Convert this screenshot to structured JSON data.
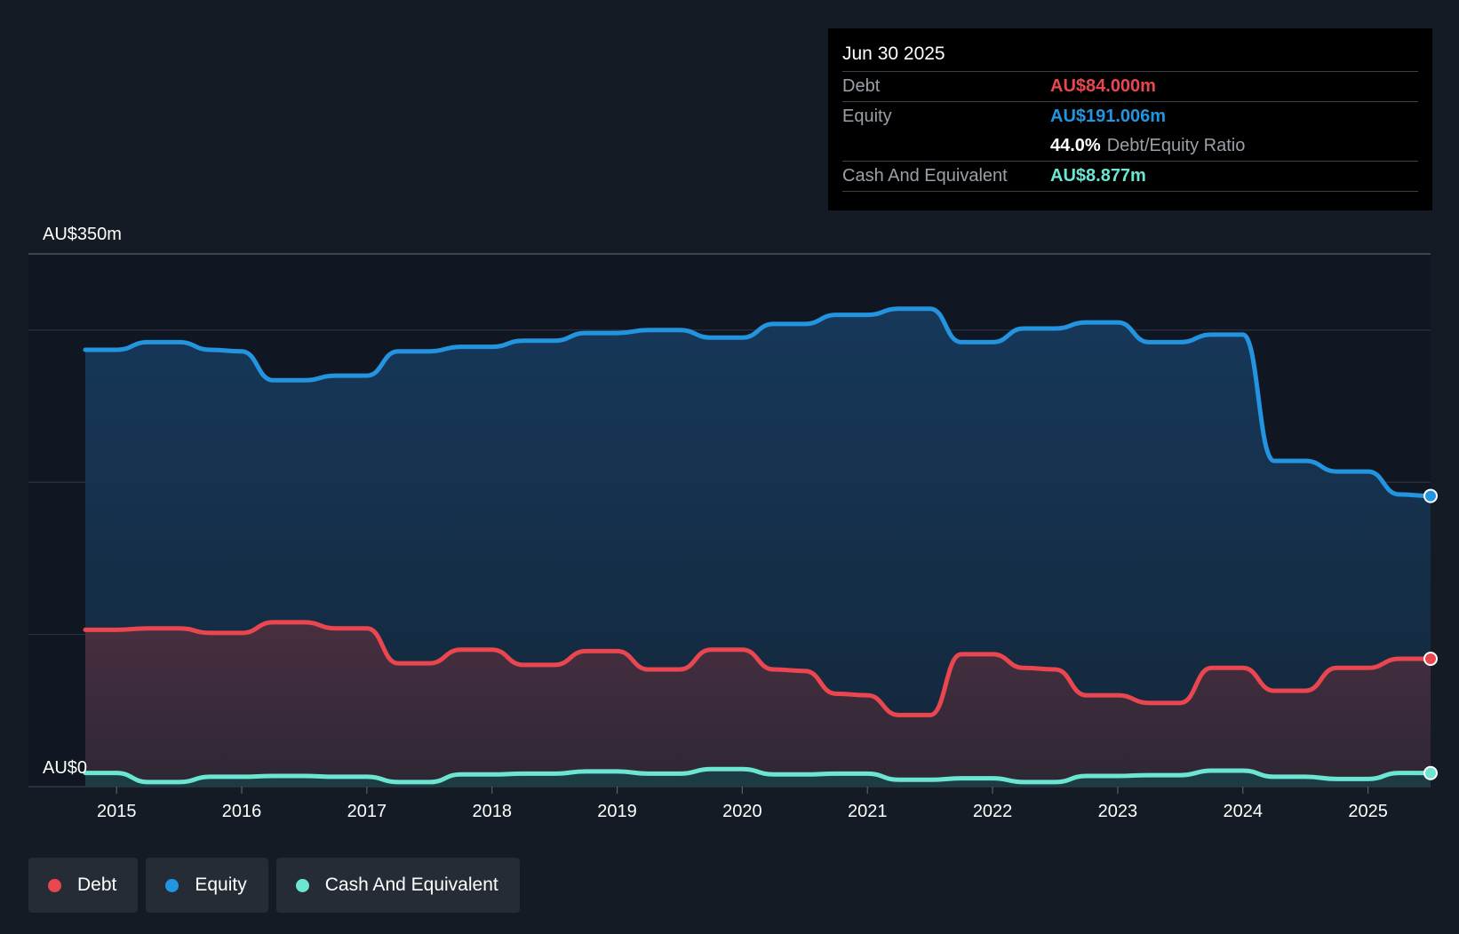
{
  "tooltip": {
    "date": "Jun 30 2025",
    "debt_label": "Debt",
    "debt_value": "AU$84.000m",
    "equity_label": "Equity",
    "equity_value": "AU$191.006m",
    "ratio_value": "44.0%",
    "ratio_label": "Debt/Equity Ratio",
    "cash_label": "Cash And Equivalent",
    "cash_value": "AU$8.877m"
  },
  "legend": {
    "debt": "Debt",
    "equity": "Equity",
    "cash": "Cash And Equivalent"
  },
  "colors": {
    "debt": "#e9464f",
    "equity": "#2394df",
    "cash": "#6ce5d2"
  },
  "chart_data": {
    "type": "area",
    "title": "",
    "xlabel": "",
    "ylabel": "",
    "y_top_label": "AU$350m",
    "y_bottom_label": "AU$0",
    "ylim": [
      0,
      350
    ],
    "xlim": [
      2014.75,
      2025.5
    ],
    "x_ticks": [
      "2015",
      "2016",
      "2017",
      "2018",
      "2019",
      "2020",
      "2021",
      "2022",
      "2023",
      "2024",
      "2025"
    ],
    "gridlines": [
      0,
      100,
      200,
      300,
      350
    ],
    "series": [
      {
        "name": "Equity",
        "key": "equity",
        "points": [
          [
            2014.75,
            287
          ],
          [
            2015.0,
            287
          ],
          [
            2015.25,
            292
          ],
          [
            2015.5,
            292
          ],
          [
            2015.75,
            287
          ],
          [
            2016.0,
            286
          ],
          [
            2016.25,
            267
          ],
          [
            2016.5,
            267
          ],
          [
            2016.75,
            270
          ],
          [
            2017.0,
            270
          ],
          [
            2017.25,
            286
          ],
          [
            2017.5,
            286
          ],
          [
            2017.75,
            289
          ],
          [
            2018.0,
            289
          ],
          [
            2018.25,
            293
          ],
          [
            2018.5,
            293
          ],
          [
            2018.75,
            298
          ],
          [
            2019.0,
            298
          ],
          [
            2019.25,
            300
          ],
          [
            2019.5,
            300
          ],
          [
            2019.75,
            295
          ],
          [
            2020.0,
            295
          ],
          [
            2020.25,
            304
          ],
          [
            2020.5,
            304
          ],
          [
            2020.75,
            310
          ],
          [
            2021.0,
            310
          ],
          [
            2021.25,
            314
          ],
          [
            2021.5,
            314
          ],
          [
            2021.75,
            292
          ],
          [
            2022.0,
            292
          ],
          [
            2022.25,
            301
          ],
          [
            2022.5,
            301
          ],
          [
            2022.75,
            305
          ],
          [
            2023.0,
            305
          ],
          [
            2023.25,
            292
          ],
          [
            2023.5,
            292
          ],
          [
            2023.75,
            297
          ],
          [
            2024.0,
            297
          ],
          [
            2024.25,
            214
          ],
          [
            2024.5,
            214
          ],
          [
            2024.75,
            207
          ],
          [
            2025.0,
            207
          ],
          [
            2025.25,
            192
          ],
          [
            2025.5,
            191
          ]
        ]
      },
      {
        "name": "Debt",
        "key": "debt",
        "points": [
          [
            2014.75,
            103
          ],
          [
            2015.0,
            103
          ],
          [
            2015.25,
            104
          ],
          [
            2015.5,
            104
          ],
          [
            2015.75,
            101
          ],
          [
            2016.0,
            101
          ],
          [
            2016.25,
            108
          ],
          [
            2016.5,
            108
          ],
          [
            2016.75,
            104
          ],
          [
            2017.0,
            104
          ],
          [
            2017.25,
            81
          ],
          [
            2017.5,
            81
          ],
          [
            2017.75,
            90
          ],
          [
            2018.0,
            90
          ],
          [
            2018.25,
            80
          ],
          [
            2018.5,
            80
          ],
          [
            2018.75,
            89
          ],
          [
            2019.0,
            89
          ],
          [
            2019.25,
            77
          ],
          [
            2019.5,
            77
          ],
          [
            2019.75,
            90
          ],
          [
            2020.0,
            90
          ],
          [
            2020.25,
            77
          ],
          [
            2020.5,
            76
          ],
          [
            2020.75,
            61
          ],
          [
            2021.0,
            60
          ],
          [
            2021.25,
            47
          ],
          [
            2021.5,
            47
          ],
          [
            2021.75,
            87
          ],
          [
            2022.0,
            87
          ],
          [
            2022.25,
            78
          ],
          [
            2022.5,
            77
          ],
          [
            2022.75,
            60
          ],
          [
            2023.0,
            60
          ],
          [
            2023.25,
            55
          ],
          [
            2023.5,
            55
          ],
          [
            2023.75,
            78
          ],
          [
            2024.0,
            78
          ],
          [
            2024.25,
            63
          ],
          [
            2024.5,
            63
          ],
          [
            2024.75,
            78
          ],
          [
            2025.0,
            78
          ],
          [
            2025.25,
            84
          ],
          [
            2025.5,
            84
          ]
        ]
      },
      {
        "name": "Cash And Equivalent",
        "key": "cash",
        "points": [
          [
            2014.75,
            9
          ],
          [
            2015.0,
            9
          ],
          [
            2015.25,
            3
          ],
          [
            2015.5,
            3
          ],
          [
            2015.75,
            6.5
          ],
          [
            2016.0,
            6.5
          ],
          [
            2016.25,
            7
          ],
          [
            2016.5,
            7
          ],
          [
            2016.75,
            6.5
          ],
          [
            2017.0,
            6.5
          ],
          [
            2017.25,
            3
          ],
          [
            2017.5,
            3
          ],
          [
            2017.75,
            8
          ],
          [
            2018.0,
            8
          ],
          [
            2018.25,
            8.5
          ],
          [
            2018.5,
            8.5
          ],
          [
            2018.75,
            10
          ],
          [
            2019.0,
            10
          ],
          [
            2019.25,
            8.5
          ],
          [
            2019.5,
            8.5
          ],
          [
            2019.75,
            11.5
          ],
          [
            2020.0,
            11.5
          ],
          [
            2020.25,
            8
          ],
          [
            2020.5,
            8
          ],
          [
            2020.75,
            8.5
          ],
          [
            2021.0,
            8.5
          ],
          [
            2021.25,
            4.5
          ],
          [
            2021.5,
            4.5
          ],
          [
            2021.75,
            5.5
          ],
          [
            2022.0,
            5.5
          ],
          [
            2022.25,
            3
          ],
          [
            2022.5,
            3
          ],
          [
            2022.75,
            7
          ],
          [
            2023.0,
            7
          ],
          [
            2023.25,
            7.5
          ],
          [
            2023.5,
            7.5
          ],
          [
            2023.75,
            10.5
          ],
          [
            2024.0,
            10.5
          ],
          [
            2024.25,
            6.5
          ],
          [
            2024.5,
            6.5
          ],
          [
            2024.75,
            5
          ],
          [
            2025.0,
            5
          ],
          [
            2025.25,
            9
          ],
          [
            2025.5,
            8.9
          ]
        ]
      }
    ]
  }
}
